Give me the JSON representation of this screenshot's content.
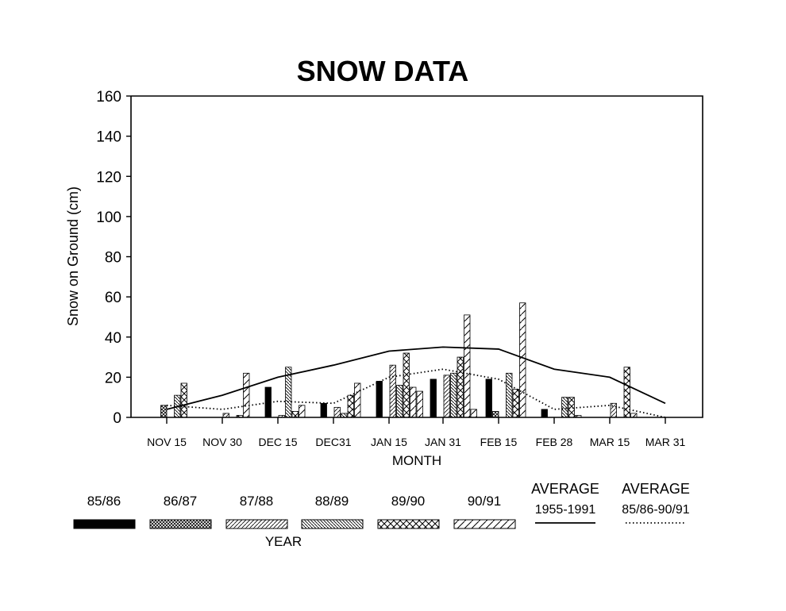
{
  "chart_data": {
    "type": "bar",
    "title": "SNOW DATA",
    "xlabel": "MONTH",
    "ylabel": "Snow on Ground (cm)",
    "legend_title": "YEAR",
    "ylim": [
      0,
      160
    ],
    "yticks": [
      0,
      20,
      40,
      60,
      80,
      100,
      120,
      140,
      160
    ],
    "grid": false,
    "legend_position": "bottom",
    "categories": [
      "NOV 15",
      "NOV 30",
      "DEC 15",
      "DEC31",
      "JAN 15",
      "JAN 31",
      "FEB 15",
      "FEB 28",
      "MAR 15",
      "MAR 31"
    ],
    "series": [
      {
        "name": "85/86",
        "pattern": "solid",
        "values": [
          0,
          0,
          15,
          7,
          18,
          19,
          19,
          4,
          0,
          0
        ]
      },
      {
        "name": "86/87",
        "pattern": "crosshatch",
        "values": [
          6,
          0,
          0,
          0,
          0,
          0,
          3,
          0,
          0,
          0
        ]
      },
      {
        "name": "87/88",
        "pattern": "diag-fwd",
        "values": [
          0,
          2,
          1,
          5,
          26,
          21,
          0,
          0,
          7,
          0
        ]
      },
      {
        "name": "88/89",
        "pattern": "diag-back",
        "values": [
          11,
          0,
          25,
          2,
          16,
          22,
          22,
          10,
          0,
          0
        ]
      },
      {
        "name": "89/90",
        "pattern": "diamond",
        "values": [
          17,
          1,
          3,
          11,
          32,
          30,
          14,
          10,
          25,
          0
        ]
      },
      {
        "name": "90/91",
        "pattern": "diag-wide",
        "values": [
          0,
          22,
          6,
          17,
          15,
          51,
          57,
          1,
          2,
          0
        ]
      }
    ],
    "extra_bars": [
      {
        "series": "90/91",
        "category": "JAN 15",
        "value": 13
      },
      {
        "series": "90/91",
        "category": "JAN 31",
        "value": 4
      }
    ],
    "lines": [
      {
        "name": "AVERAGE 1955-1991",
        "label_line1": "AVERAGE",
        "label_line2": "1955-1991",
        "style": "solid",
        "values": [
          4,
          11,
          20,
          26,
          33,
          35,
          34,
          24,
          20,
          7
        ]
      },
      {
        "name": "AVERAGE 85/86-90/91",
        "label_line1": "AVERAGE",
        "label_line2": "85/86-90/91",
        "style": "dotted",
        "values": [
          6,
          4,
          8,
          7,
          20,
          24,
          19,
          4,
          6,
          0
        ]
      }
    ]
  }
}
